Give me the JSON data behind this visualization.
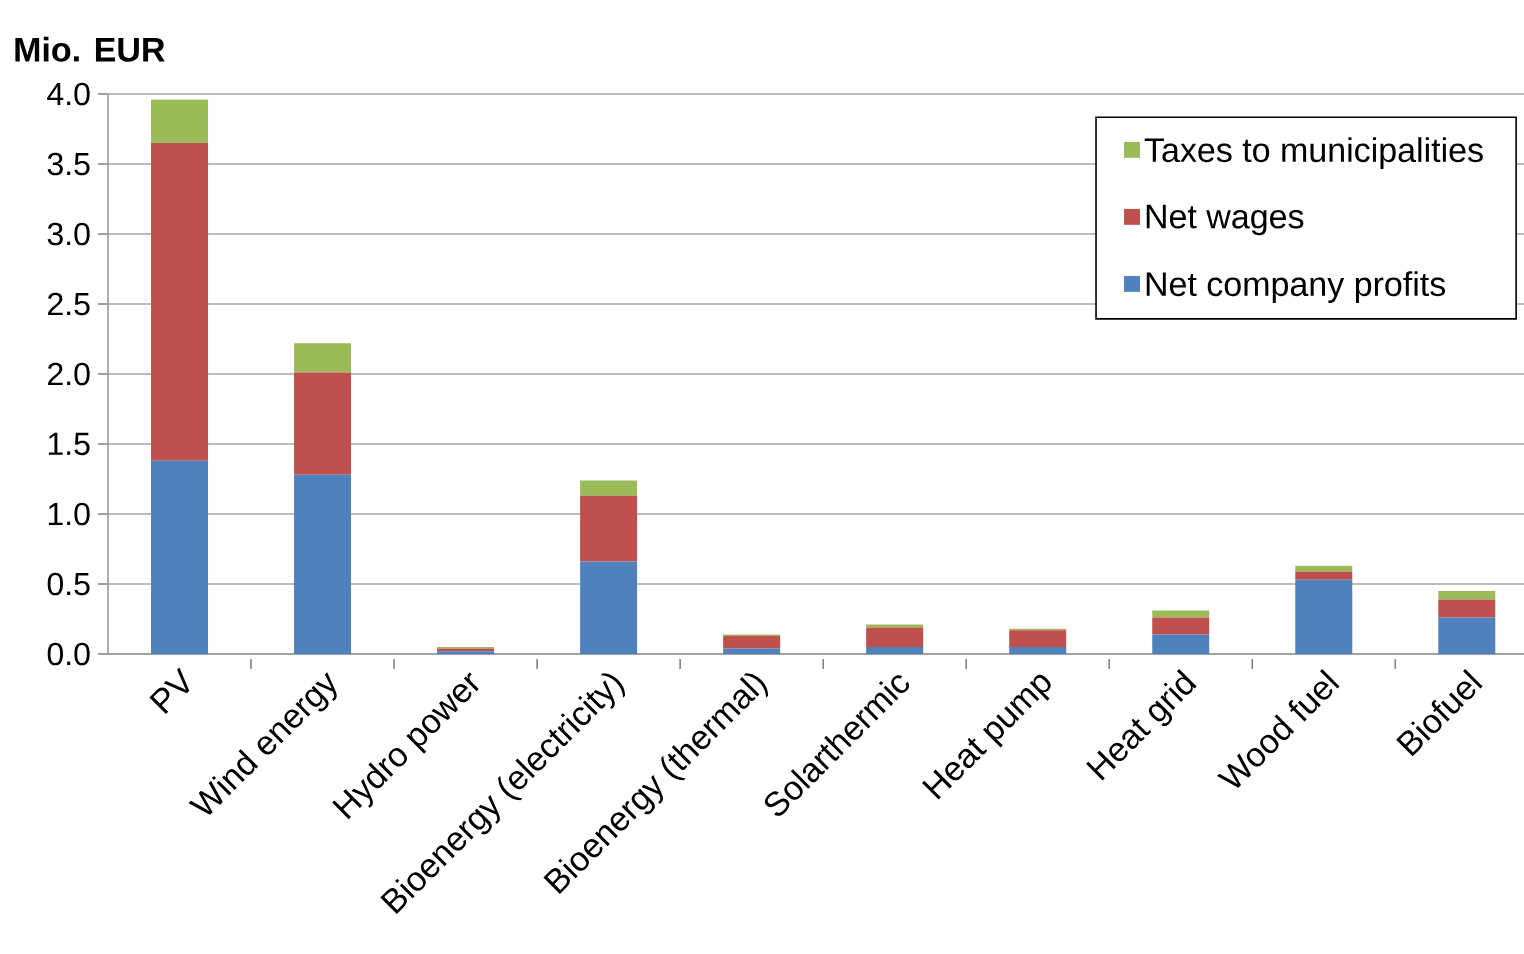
{
  "chart_data": {
    "type": "bar",
    "stacked": true,
    "ylabel": "Mio. EUR",
    "categories": [
      "PV",
      "Wind energy",
      "Hydro power",
      "Bioenergy (electricity)",
      "Bioenergy (thermal)",
      "Solarthermic",
      "Heat pump",
      "Heat grid",
      "Wood fuel",
      "Biofuel"
    ],
    "series": [
      {
        "name": "Net company profits",
        "color": "#4f81bd",
        "values": [
          1.38,
          1.28,
          0.02,
          0.66,
          0.04,
          0.05,
          0.05,
          0.14,
          0.53,
          0.26
        ]
      },
      {
        "name": "Net wages",
        "color": "#c0504d",
        "values": [
          2.27,
          0.73,
          0.02,
          0.47,
          0.09,
          0.14,
          0.12,
          0.12,
          0.06,
          0.13
        ]
      },
      {
        "name": "Taxes to municipalities",
        "color": "#9bbb59",
        "values": [
          0.31,
          0.21,
          0.01,
          0.11,
          0.01,
          0.02,
          0.01,
          0.05,
          0.04,
          0.06
        ]
      }
    ],
    "ylim": [
      0,
      4.0
    ],
    "yticks": [
      {
        "value": 0,
        "label": "0.0"
      },
      {
        "value": 0.5,
        "label": "0.5"
      },
      {
        "value": 1.0,
        "label": "1.0"
      },
      {
        "value": 1.5,
        "label": "1.5"
      },
      {
        "value": 2.0,
        "label": "2.0"
      },
      {
        "value": 2.5,
        "label": "2.5"
      },
      {
        "value": 3.0,
        "label": "3.0"
      },
      {
        "value": 3.5,
        "label": "3.5"
      },
      {
        "value": 4.0,
        "label": "4.0"
      }
    ],
    "grid": "y",
    "legend": "top right"
  }
}
